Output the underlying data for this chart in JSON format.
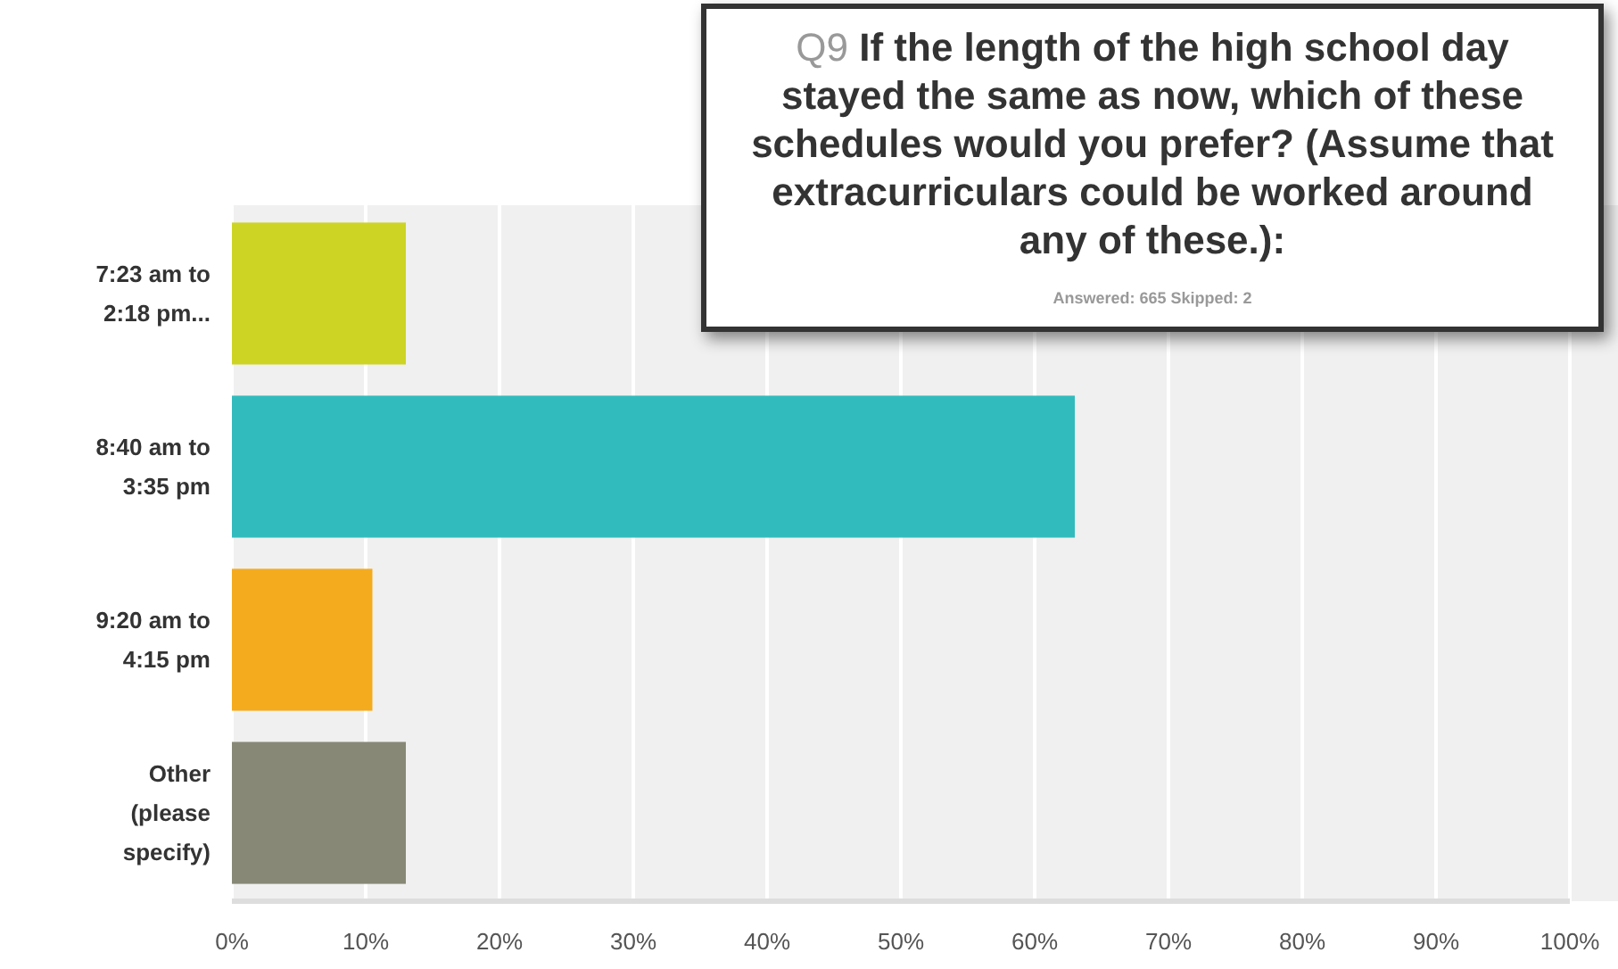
{
  "chart_data": {
    "type": "bar",
    "orientation": "horizontal",
    "title": "Q9 If the length of the high school day stayed the same as now, which of these schedules would you prefer? (Assume that extracurriculars could be worked around any of these.):",
    "subtitle": "Answered: 665    Skipped: 2",
    "categories": [
      "7:23 am to 2:18 pm...",
      "8:40 am to 3:35 pm",
      "9:20 am to 4:15 pm",
      "Other (please specify)"
    ],
    "values": [
      13,
      63,
      10.5,
      13
    ],
    "colors": [
      "#cdd424",
      "#32bbbd",
      "#f4ab1d",
      "#888877"
    ],
    "xlim": [
      0,
      100
    ],
    "xticks": [
      {
        "value": 0,
        "label": "0%"
      },
      {
        "value": 10,
        "label": "10%"
      },
      {
        "value": 20,
        "label": "20%"
      },
      {
        "value": 30,
        "label": "30%"
      },
      {
        "value": 40,
        "label": "40%"
      },
      {
        "value": 50,
        "label": "50%"
      },
      {
        "value": 60,
        "label": "60%"
      },
      {
        "value": 70,
        "label": "70%"
      },
      {
        "value": 80,
        "label": "80%"
      },
      {
        "value": 90,
        "label": "90%"
      },
      {
        "value": 100,
        "label": "100%"
      }
    ],
    "grid": "x"
  }
}
